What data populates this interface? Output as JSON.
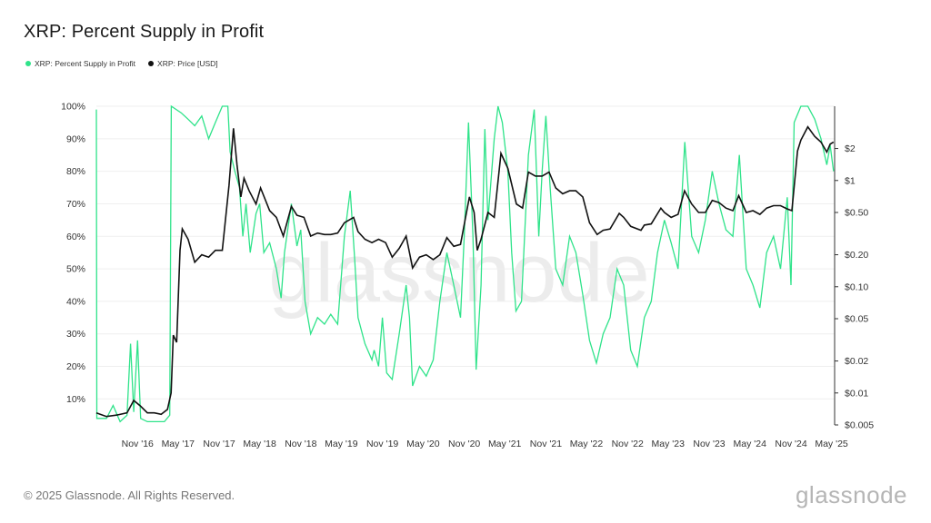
{
  "title": "XRP: Percent Supply in Profit",
  "copyright": "© 2025 Glassnode. All Rights Reserved.",
  "logo": "glassnode",
  "watermark": "glassnode",
  "legend": [
    {
      "label": "XRP: Percent Supply in Profit",
      "color": "#2fe38a"
    },
    {
      "label": "XRP: Price [USD]",
      "color": "#111111"
    }
  ],
  "chart_data": {
    "type": "line",
    "x_range": [
      "2016-05-01",
      "2025-05-15"
    ],
    "x_ticks": [
      "Nov '16",
      "May '17",
      "Nov '17",
      "May '18",
      "Nov '18",
      "May '19",
      "Nov '19",
      "May '20",
      "Nov '20",
      "May '21",
      "Nov '21",
      "May '22",
      "Nov '22",
      "May '23",
      "Nov '23",
      "May '24",
      "Nov '24",
      "May '25"
    ],
    "y_left": {
      "ylim": [
        2,
        100
      ],
      "ticks": [
        "10%",
        "20%",
        "30%",
        "40%",
        "50%",
        "60%",
        "70%",
        "80%",
        "90%",
        "100%"
      ]
    },
    "y_right": {
      "scale": "log",
      "ylim": [
        0.005,
        5
      ],
      "ticks": [
        "$0.005",
        "$0.01",
        "$0.02",
        "$0.05",
        "$0.10",
        "$0.20",
        "$0.50",
        "$1",
        "$2"
      ]
    },
    "grid": true,
    "legend_position": "top-left",
    "series": [
      {
        "name": "XRP: Percent Supply in Profit",
        "axis": "left",
        "color": "#2fe38a",
        "points": [
          [
            "2016-05-01",
            99
          ],
          [
            "2016-05-03",
            4
          ],
          [
            "2016-06-15",
            4
          ],
          [
            "2016-07-15",
            8
          ],
          [
            "2016-08-15",
            3
          ],
          [
            "2016-09-15",
            5
          ],
          [
            "2016-10-01",
            27
          ],
          [
            "2016-10-15",
            6
          ],
          [
            "2016-11-01",
            28
          ],
          [
            "2016-11-15",
            4
          ],
          [
            "2016-12-15",
            3
          ],
          [
            "2017-02-01",
            3
          ],
          [
            "2017-03-01",
            3
          ],
          [
            "2017-03-25",
            5
          ],
          [
            "2017-04-01",
            100
          ],
          [
            "2017-05-15",
            98
          ],
          [
            "2017-06-15",
            96
          ],
          [
            "2017-07-15",
            94
          ],
          [
            "2017-08-15",
            97
          ],
          [
            "2017-09-15",
            90
          ],
          [
            "2017-10-15",
            95
          ],
          [
            "2017-11-15",
            100
          ],
          [
            "2017-12-10",
            100
          ],
          [
            "2017-12-20",
            86
          ],
          [
            "2018-01-10",
            80
          ],
          [
            "2018-01-31",
            75
          ],
          [
            "2018-02-15",
            60
          ],
          [
            "2018-03-01",
            70
          ],
          [
            "2018-03-20",
            55
          ],
          [
            "2018-04-15",
            67
          ],
          [
            "2018-05-01",
            70
          ],
          [
            "2018-05-20",
            55
          ],
          [
            "2018-06-15",
            58
          ],
          [
            "2018-07-15",
            50
          ],
          [
            "2018-08-05",
            41
          ],
          [
            "2018-08-20",
            55
          ],
          [
            "2018-09-20",
            70
          ],
          [
            "2018-10-15",
            57
          ],
          [
            "2018-11-01",
            62
          ],
          [
            "2018-11-20",
            40
          ],
          [
            "2018-12-15",
            30
          ],
          [
            "2019-01-15",
            35
          ],
          [
            "2019-02-15",
            33
          ],
          [
            "2019-03-15",
            36
          ],
          [
            "2019-04-15",
            33
          ],
          [
            "2019-05-15",
            60
          ],
          [
            "2019-06-10",
            74
          ],
          [
            "2019-06-30",
            53
          ],
          [
            "2019-07-15",
            35
          ],
          [
            "2019-08-15",
            27
          ],
          [
            "2019-09-15",
            22
          ],
          [
            "2019-09-25",
            25
          ],
          [
            "2019-10-15",
            20
          ],
          [
            "2019-11-01",
            35
          ],
          [
            "2019-11-20",
            18
          ],
          [
            "2019-12-15",
            16
          ],
          [
            "2020-01-15",
            30
          ],
          [
            "2020-02-15",
            45
          ],
          [
            "2020-03-01",
            35
          ],
          [
            "2020-03-15",
            14
          ],
          [
            "2020-04-15",
            20
          ],
          [
            "2020-05-15",
            17
          ],
          [
            "2020-06-15",
            22
          ],
          [
            "2020-07-15",
            40
          ],
          [
            "2020-08-15",
            55
          ],
          [
            "2020-09-15",
            45
          ],
          [
            "2020-10-15",
            35
          ],
          [
            "2020-11-01",
            60
          ],
          [
            "2020-11-20",
            95
          ],
          [
            "2020-12-10",
            60
          ],
          [
            "2020-12-24",
            19
          ],
          [
            "2021-01-15",
            45
          ],
          [
            "2021-02-01",
            93
          ],
          [
            "2021-02-15",
            65
          ],
          [
            "2021-03-15",
            90
          ],
          [
            "2021-04-01",
            100
          ],
          [
            "2021-04-20",
            95
          ],
          [
            "2021-05-15",
            80
          ],
          [
            "2021-06-01",
            55
          ],
          [
            "2021-06-20",
            37
          ],
          [
            "2021-07-15",
            40
          ],
          [
            "2021-08-15",
            85
          ],
          [
            "2021-09-10",
            99
          ],
          [
            "2021-09-30",
            60
          ],
          [
            "2021-10-15",
            80
          ],
          [
            "2021-11-01",
            97
          ],
          [
            "2021-11-20",
            75
          ],
          [
            "2021-12-15",
            50
          ],
          [
            "2022-01-15",
            45
          ],
          [
            "2022-02-15",
            60
          ],
          [
            "2022-03-15",
            55
          ],
          [
            "2022-04-15",
            42
          ],
          [
            "2022-05-15",
            28
          ],
          [
            "2022-06-15",
            21
          ],
          [
            "2022-07-15",
            30
          ],
          [
            "2022-08-15",
            35
          ],
          [
            "2022-09-15",
            50
          ],
          [
            "2022-10-15",
            45
          ],
          [
            "2022-11-15",
            25
          ],
          [
            "2022-12-15",
            20
          ],
          [
            "2023-01-15",
            35
          ],
          [
            "2023-02-15",
            40
          ],
          [
            "2023-03-15",
            55
          ],
          [
            "2023-04-15",
            65
          ],
          [
            "2023-05-15",
            58
          ],
          [
            "2023-06-15",
            50
          ],
          [
            "2023-07-15",
            89
          ],
          [
            "2023-08-15",
            60
          ],
          [
            "2023-09-15",
            55
          ],
          [
            "2023-10-15",
            65
          ],
          [
            "2023-11-15",
            80
          ],
          [
            "2023-12-15",
            70
          ],
          [
            "2024-01-15",
            62
          ],
          [
            "2024-02-15",
            60
          ],
          [
            "2024-03-15",
            85
          ],
          [
            "2024-04-15",
            50
          ],
          [
            "2024-05-15",
            45
          ],
          [
            "2024-06-15",
            38
          ],
          [
            "2024-07-15",
            55
          ],
          [
            "2024-08-15",
            60
          ],
          [
            "2024-09-15",
            50
          ],
          [
            "2024-10-15",
            72
          ],
          [
            "2024-11-01",
            45
          ],
          [
            "2024-11-15",
            95
          ],
          [
            "2024-12-15",
            100
          ],
          [
            "2025-01-15",
            100
          ],
          [
            "2025-02-15",
            96
          ],
          [
            "2025-03-15",
            90
          ],
          [
            "2025-04-10",
            82
          ],
          [
            "2025-04-25",
            88
          ],
          [
            "2025-05-10",
            80
          ]
        ]
      },
      {
        "name": "XRP: Price [USD]",
        "axis": "right",
        "color": "#111111",
        "points": [
          [
            "2016-05-01",
            0.0065
          ],
          [
            "2016-06-15",
            0.006
          ],
          [
            "2016-08-01",
            0.0062
          ],
          [
            "2016-09-15",
            0.0065
          ],
          [
            "2016-10-15",
            0.0085
          ],
          [
            "2016-11-15",
            0.0075
          ],
          [
            "2016-12-15",
            0.0065
          ],
          [
            "2017-01-15",
            0.0065
          ],
          [
            "2017-02-15",
            0.0063
          ],
          [
            "2017-03-15",
            0.007
          ],
          [
            "2017-03-31",
            0.01
          ],
          [
            "2017-04-10",
            0.035
          ],
          [
            "2017-04-25",
            0.03
          ],
          [
            "2017-05-10",
            0.22
          ],
          [
            "2017-05-20",
            0.35
          ],
          [
            "2017-06-15",
            0.28
          ],
          [
            "2017-07-15",
            0.17
          ],
          [
            "2017-08-15",
            0.2
          ],
          [
            "2017-09-15",
            0.19
          ],
          [
            "2017-10-15",
            0.22
          ],
          [
            "2017-11-15",
            0.22
          ],
          [
            "2017-12-15",
            0.9
          ],
          [
            "2018-01-04",
            3.1
          ],
          [
            "2018-01-20",
            1.4
          ],
          [
            "2018-02-06",
            0.7
          ],
          [
            "2018-02-20",
            1.05
          ],
          [
            "2018-03-15",
            0.8
          ],
          [
            "2018-04-15",
            0.6
          ],
          [
            "2018-05-05",
            0.85
          ],
          [
            "2018-06-15",
            0.52
          ],
          [
            "2018-07-15",
            0.45
          ],
          [
            "2018-08-15",
            0.3
          ],
          [
            "2018-09-20",
            0.57
          ],
          [
            "2018-10-15",
            0.47
          ],
          [
            "2018-11-15",
            0.45
          ],
          [
            "2018-12-15",
            0.3
          ],
          [
            "2019-01-15",
            0.32
          ],
          [
            "2019-02-15",
            0.31
          ],
          [
            "2019-03-15",
            0.31
          ],
          [
            "2019-04-15",
            0.32
          ],
          [
            "2019-05-15",
            0.4
          ],
          [
            "2019-06-25",
            0.45
          ],
          [
            "2019-07-15",
            0.33
          ],
          [
            "2019-08-15",
            0.28
          ],
          [
            "2019-09-15",
            0.26
          ],
          [
            "2019-10-15",
            0.28
          ],
          [
            "2019-11-15",
            0.26
          ],
          [
            "2019-12-15",
            0.19
          ],
          [
            "2020-01-15",
            0.23
          ],
          [
            "2020-02-15",
            0.3
          ],
          [
            "2020-03-15",
            0.15
          ],
          [
            "2020-04-15",
            0.19
          ],
          [
            "2020-05-15",
            0.2
          ],
          [
            "2020-06-15",
            0.18
          ],
          [
            "2020-07-15",
            0.2
          ],
          [
            "2020-08-15",
            0.29
          ],
          [
            "2020-09-15",
            0.24
          ],
          [
            "2020-10-15",
            0.25
          ],
          [
            "2020-11-24",
            0.7
          ],
          [
            "2020-12-15",
            0.5
          ],
          [
            "2020-12-29",
            0.22
          ],
          [
            "2021-01-15",
            0.28
          ],
          [
            "2021-02-15",
            0.5
          ],
          [
            "2021-03-15",
            0.45
          ],
          [
            "2021-04-14",
            1.8
          ],
          [
            "2021-05-15",
            1.3
          ],
          [
            "2021-06-22",
            0.6
          ],
          [
            "2021-07-20",
            0.55
          ],
          [
            "2021-08-15",
            1.2
          ],
          [
            "2021-09-15",
            1.1
          ],
          [
            "2021-10-15",
            1.1
          ],
          [
            "2021-11-15",
            1.2
          ],
          [
            "2021-12-15",
            0.85
          ],
          [
            "2022-01-15",
            0.75
          ],
          [
            "2022-02-15",
            0.8
          ],
          [
            "2022-03-15",
            0.8
          ],
          [
            "2022-04-15",
            0.7
          ],
          [
            "2022-05-15",
            0.4
          ],
          [
            "2022-06-18",
            0.31
          ],
          [
            "2022-07-15",
            0.34
          ],
          [
            "2022-08-15",
            0.35
          ],
          [
            "2022-09-25",
            0.49
          ],
          [
            "2022-10-15",
            0.45
          ],
          [
            "2022-11-15",
            0.37
          ],
          [
            "2022-12-31",
            0.34
          ],
          [
            "2023-01-15",
            0.38
          ],
          [
            "2023-02-15",
            0.39
          ],
          [
            "2023-03-30",
            0.55
          ],
          [
            "2023-04-15",
            0.5
          ],
          [
            "2023-05-15",
            0.45
          ],
          [
            "2023-06-15",
            0.48
          ],
          [
            "2023-07-14",
            0.8
          ],
          [
            "2023-08-15",
            0.6
          ],
          [
            "2023-09-15",
            0.5
          ],
          [
            "2023-10-15",
            0.5
          ],
          [
            "2023-11-15",
            0.65
          ],
          [
            "2023-12-15",
            0.62
          ],
          [
            "2024-01-15",
            0.55
          ],
          [
            "2024-02-15",
            0.52
          ],
          [
            "2024-03-12",
            0.72
          ],
          [
            "2024-04-15",
            0.5
          ],
          [
            "2024-05-15",
            0.52
          ],
          [
            "2024-06-15",
            0.48
          ],
          [
            "2024-07-15",
            0.55
          ],
          [
            "2024-08-15",
            0.58
          ],
          [
            "2024-09-15",
            0.58
          ],
          [
            "2024-10-15",
            0.54
          ],
          [
            "2024-11-05",
            0.52
          ],
          [
            "2024-11-30",
            1.9
          ],
          [
            "2024-12-15",
            2.4
          ],
          [
            "2025-01-15",
            3.2
          ],
          [
            "2025-02-15",
            2.6
          ],
          [
            "2025-03-15",
            2.3
          ],
          [
            "2025-04-10",
            1.85
          ],
          [
            "2025-04-25",
            2.2
          ],
          [
            "2025-05-10",
            2.3
          ]
        ]
      }
    ]
  }
}
